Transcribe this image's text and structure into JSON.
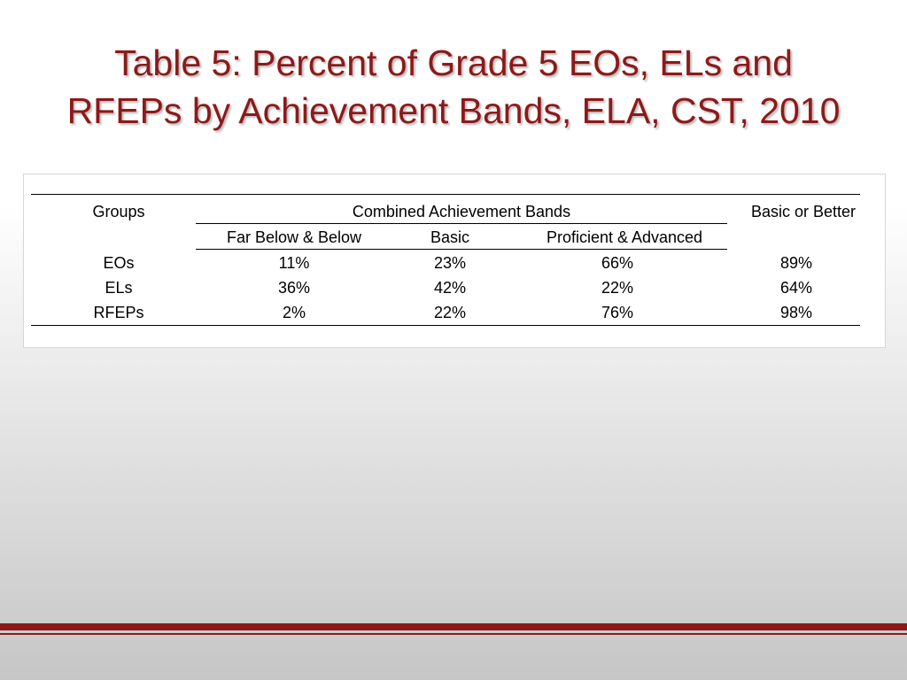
{
  "slide": {
    "title_line1": "Table 5: Percent of Grade 5 EOs, ELs and",
    "title_line2": "RFEPs by Achievement Bands, ELA, CST, 2010",
    "title_color": "#8b1a1a",
    "accent_color": "#8b1a1a"
  },
  "table": {
    "header": {
      "groups": "Groups",
      "combined": "Combined Achievement Bands",
      "basic_or_better": "Basic or Better",
      "sub": [
        "Far Below & Below",
        "Basic",
        "Proficient & Advanced"
      ]
    },
    "rows": [
      {
        "group": "EOs",
        "far_below_below": "11%",
        "basic": "23%",
        "proficient_advanced": "66%",
        "basic_or_better": "89%"
      },
      {
        "group": "ELs",
        "far_below_below": "36%",
        "basic": "42%",
        "proficient_advanced": "22%",
        "basic_or_better": "64%"
      },
      {
        "group": "RFEPs",
        "far_below_below": "2%",
        "basic": "22%",
        "proficient_advanced": "76%",
        "basic_or_better": "98%"
      }
    ]
  }
}
